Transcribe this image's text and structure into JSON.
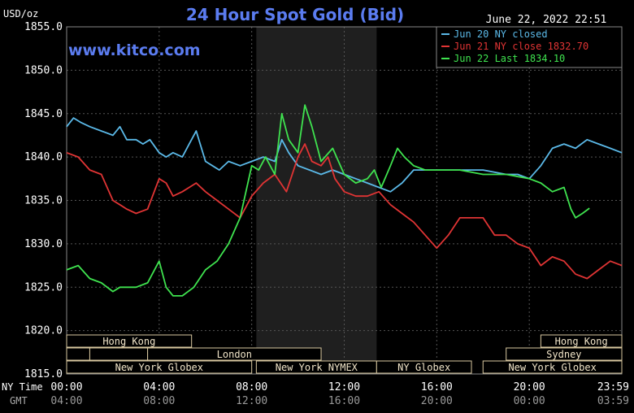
{
  "chart_data": {
    "type": "line",
    "title": "24 Hour Spot Gold (Bid)",
    "subtitle": "June 22, 2022 22:51",
    "watermark": "www.kitco.com",
    "y_unit_label": "USD/oz",
    "ylim": [
      1815.0,
      1855.0
    ],
    "y_ticks": [
      "1855.0",
      "1850.0",
      "1845.0",
      "1840.0",
      "1835.0",
      "1830.0",
      "1825.0",
      "1820.0",
      "1815.0"
    ],
    "x_time_label_ny": "NY Time",
    "x_time_label_gmt": "GMT",
    "x_ticks_ny": [
      "00:00",
      "04:00",
      "08:00",
      "12:00",
      "16:00",
      "20:00",
      "23:59"
    ],
    "x_ticks_gmt": [
      "04:00",
      "08:00",
      "12:00",
      "16:00",
      "20:00",
      "00:00",
      "03:59"
    ],
    "highlight_hours": [
      8.2,
      13.4
    ],
    "legend_position": "top-right",
    "markets": {
      "row1": [
        {
          "label": "Hong Kong",
          "start": 0.0,
          "end": 5.4
        },
        {
          "label": "Hong Kong",
          "start": 20.5,
          "end": 24.0
        }
      ],
      "row2": [
        {
          "label": "",
          "start": 0.0,
          "end": 1.0
        },
        {
          "label": "",
          "start": 1.0,
          "end": 3.5
        },
        {
          "label": "London",
          "start": 3.5,
          "end": 11.0
        },
        {
          "label": "Sydney",
          "start": 19.0,
          "end": 24.0
        }
      ],
      "row3": [
        {
          "label": "New York Globex",
          "start": 0.0,
          "end": 8.0
        },
        {
          "label": "New York NYMEX",
          "start": 8.2,
          "end": 13.4
        },
        {
          "label": "NY Globex",
          "start": 13.4,
          "end": 17.5
        },
        {
          "label": "New York Globex",
          "start": 18.0,
          "end": 24.0
        }
      ]
    },
    "series": [
      {
        "name": "Jun 20 NY closed",
        "color": "#5bb9e8",
        "x": [
          0,
          0.3,
          0.6,
          1,
          1.5,
          2,
          2.3,
          2.6,
          3,
          3.3,
          3.6,
          4,
          4.3,
          4.6,
          5,
          5.3,
          5.6,
          6,
          6.3,
          6.6,
          7,
          7.5,
          8,
          8.5,
          9,
          9.3,
          9.6,
          10,
          10.5,
          11,
          11.5,
          12,
          12.5,
          13,
          13.5,
          14,
          14.5,
          15,
          16,
          17,
          18,
          19,
          19.5,
          20,
          20.5,
          21,
          21.5,
          22,
          22.5,
          23,
          23.5,
          24
        ],
        "values": [
          1843.5,
          1844.5,
          1844.0,
          1843.5,
          1843.0,
          1842.5,
          1843.5,
          1842.0,
          1842.0,
          1841.5,
          1842.0,
          1840.5,
          1840.0,
          1840.5,
          1840.0,
          1841.5,
          1843.0,
          1839.5,
          1839.0,
          1838.5,
          1839.5,
          1839.0,
          1839.5,
          1840.0,
          1839.5,
          1842.0,
          1840.5,
          1839.0,
          1838.5,
          1838.0,
          1838.5,
          1838.0,
          1837.5,
          1837.0,
          1836.5,
          1836.0,
          1837.0,
          1838.5,
          1838.5,
          1838.5,
          1838.5,
          1838.0,
          1838.0,
          1837.5,
          1839.0,
          1841.0,
          1841.5,
          1841.0,
          1842.0,
          1841.5,
          1841.0,
          1840.5
        ]
      },
      {
        "name": "Jun 21 NY close 1832.70",
        "color": "#e03434",
        "x": [
          0,
          0.5,
          1,
          1.5,
          2,
          2.3,
          2.6,
          3,
          3.5,
          4,
          4.3,
          4.6,
          5,
          5.3,
          5.6,
          6,
          6.5,
          7,
          7.5,
          8,
          8.5,
          9,
          9.5,
          10,
          10.3,
          10.6,
          11,
          11.3,
          11.6,
          12,
          12.5,
          13,
          13.5,
          14,
          14.5,
          15,
          15.5,
          16,
          16.5,
          17,
          17.5,
          18,
          18.5,
          19,
          19.5,
          20,
          20.5,
          21,
          21.5,
          22,
          22.5,
          23,
          23.5,
          24
        ],
        "values": [
          1840.5,
          1840.0,
          1838.5,
          1838.0,
          1835.0,
          1834.5,
          1834.0,
          1833.5,
          1834.0,
          1837.5,
          1837.0,
          1835.5,
          1836.0,
          1836.5,
          1837.0,
          1836.0,
          1835.0,
          1834.0,
          1833.0,
          1835.5,
          1837.0,
          1838.0,
          1836.0,
          1840.0,
          1841.5,
          1839.5,
          1839.0,
          1840.0,
          1837.5,
          1836.0,
          1835.5,
          1835.5,
          1836.0,
          1834.5,
          1833.5,
          1832.5,
          1831.0,
          1829.5,
          1831.0,
          1833.0,
          1833.0,
          1833.0,
          1831.0,
          1831.0,
          1830.0,
          1829.5,
          1827.5,
          1828.5,
          1828.0,
          1826.5,
          1826.0,
          1827.0,
          1828.0,
          1827.5
        ]
      },
      {
        "name": "Jun 22 Last 1834.10",
        "color": "#3fe34f",
        "x": [
          0,
          0.5,
          1,
          1.5,
          2,
          2.3,
          2.6,
          3,
          3.5,
          4,
          4.3,
          4.6,
          5,
          5.5,
          6,
          6.5,
          7,
          7.5,
          8,
          8.3,
          8.6,
          9,
          9.3,
          9.6,
          10,
          10.3,
          10.6,
          11,
          11.5,
          12,
          12.5,
          13,
          13.3,
          13.6,
          14,
          14.3,
          14.6,
          15,
          15.5,
          16,
          16.5,
          17,
          18,
          19,
          20,
          20.5,
          21,
          21.5,
          21.8,
          22,
          22.3,
          22.6
        ],
        "values": [
          1827.0,
          1827.5,
          1826.0,
          1825.5,
          1824.5,
          1825.0,
          1825.0,
          1825.0,
          1825.5,
          1828.0,
          1825.0,
          1824.0,
          1824.0,
          1825.0,
          1827.0,
          1828.0,
          1830.0,
          1833.0,
          1839.0,
          1838.5,
          1840.0,
          1838.0,
          1845.0,
          1842.0,
          1840.5,
          1846.0,
          1843.5,
          1839.5,
          1841.0,
          1838.0,
          1837.0,
          1837.5,
          1838.5,
          1836.5,
          1839.0,
          1841.0,
          1840.0,
          1839.0,
          1838.5,
          1838.5,
          1838.5,
          1838.5,
          1838.0,
          1838.0,
          1837.5,
          1837.0,
          1836.0,
          1836.5,
          1834.0,
          1833.0,
          1833.5,
          1834.1
        ]
      }
    ]
  }
}
